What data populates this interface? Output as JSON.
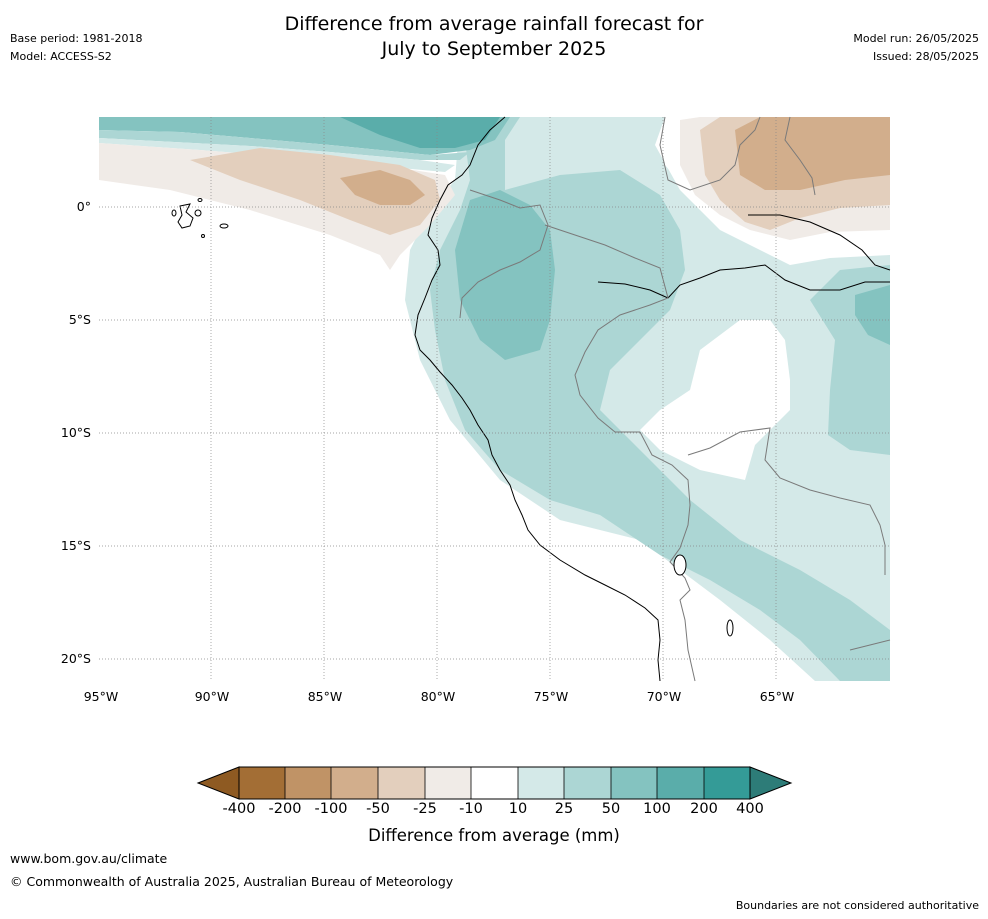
{
  "title": {
    "line1": "Difference from average rainfall forecast for",
    "line2": "July to September 2025"
  },
  "meta_left": {
    "base_period": "Base period: 1981-2018",
    "model": "Model: ACCESS-S2"
  },
  "meta_right": {
    "model_run": "Model run: 26/05/2025",
    "issued": "Issued: 28/05/2025"
  },
  "map": {
    "lat_labels": [
      "0°",
      "5°S",
      "10°S",
      "15°S",
      "20°S"
    ],
    "lon_labels": [
      "95°W",
      "90°W",
      "85°W",
      "80°W",
      "75°W",
      "70°W",
      "65°W"
    ],
    "colors": {
      "brown_dark": "#a36e35",
      "brown_mid": "#c09366",
      "brown_light": "#d2ae8c",
      "tan": "#e3cfbd",
      "tan_light": "#f0ebe7",
      "white": "#ffffff",
      "teal_pale": "#d4e9e8",
      "teal_light": "#acd6d4",
      "teal_mid": "#84c3c0",
      "teal": "#5aadaa",
      "teal_dark": "#349b97",
      "teal_darkest": "#2d7c78"
    }
  },
  "colorbar": {
    "ticks": [
      "-400",
      "-200",
      "-100",
      "-50",
      "-25",
      "-10",
      "10",
      "25",
      "50",
      "100",
      "200",
      "400"
    ],
    "title": "Difference from average (mm)"
  },
  "footer": {
    "url": "www.bom.gov.au/climate",
    "copyright": "© Commonwealth of Australia 2025, Australian Bureau of Meteorology",
    "boundaries": "Boundaries are not considered authoritative"
  }
}
